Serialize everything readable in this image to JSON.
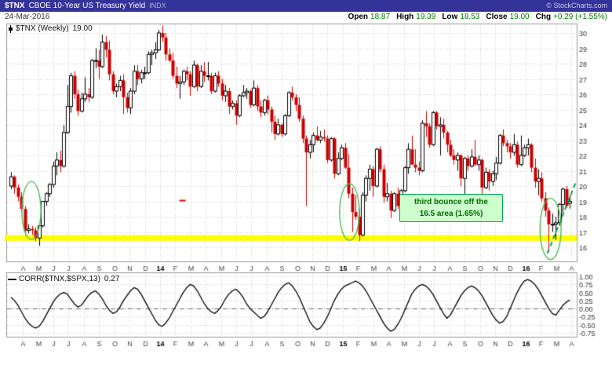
{
  "header": {
    "symbol": "$TNX",
    "name": "CBOE 10-Year US Treasury Yield",
    "exchange": "INDX",
    "copyright": "© StockCharts.com"
  },
  "info": {
    "date": "24-Mar-2016",
    "open_label": "Open",
    "open": "18.87",
    "high_label": "High",
    "high": "19.39",
    "low_label": "Low",
    "low": "18.53",
    "close_label": "Close",
    "close": "19.00",
    "chg_label": "Chg",
    "chg": "+0.29 (+1.55%)"
  },
  "colors": {
    "header_bg": "#333399",
    "candle_up": "#000000",
    "candle_down": "#CC0000",
    "support_band": "#FFFF00",
    "annotation_green": "#00A550",
    "value_green": "#007A00"
  },
  "chart_data": [
    {
      "type": "candlestick",
      "title": "$TNX (Weekly)",
      "value_label": "19.00",
      "timeframe": "Weekly",
      "y_ticks": [
        30,
        29,
        28,
        27,
        26,
        25,
        24,
        23,
        22,
        21,
        20,
        19,
        18,
        17,
        16
      ],
      "ylim": [
        15.1,
        30.7
      ],
      "grid": true,
      "x_axis": {
        "labels": [
          "A",
          "M",
          "J",
          "J",
          "A",
          "S",
          "O",
          "N",
          "D",
          "14",
          "F",
          "M",
          "A",
          "M",
          "J",
          "J",
          "A",
          "S",
          "O",
          "N",
          "D",
          "15",
          "F",
          "M",
          "A",
          "M",
          "J",
          "J",
          "A",
          "S",
          "O",
          "N",
          "D",
          "16",
          "F",
          "M",
          "A"
        ],
        "first_label_week": 3.4,
        "weeks_per_month": 4.3333
      },
      "colors": {
        "up": "#000000",
        "down": "#CC0000"
      },
      "candles": [
        [
          20.0,
          20.9,
          19.8,
          20.6
        ],
        [
          20.6,
          20.7,
          19.5,
          19.9
        ],
        [
          19.9,
          20.1,
          19.0,
          19.3
        ],
        [
          19.3,
          19.6,
          18.3,
          18.5
        ],
        [
          18.5,
          18.7,
          16.8,
          17.1
        ],
        [
          17.1,
          17.5,
          16.9,
          17.2
        ],
        [
          17.2,
          17.4,
          16.8,
          17.1
        ],
        [
          17.1,
          17.3,
          16.4,
          16.6
        ],
        [
          16.6,
          17.5,
          16.1,
          17.4
        ],
        [
          17.4,
          19.0,
          17.3,
          19.0
        ],
        [
          19.0,
          19.6,
          18.7,
          19.5
        ],
        [
          19.5,
          20.2,
          19.3,
          20.1
        ],
        [
          20.1,
          21.6,
          19.9,
          21.3
        ],
        [
          21.3,
          22.2,
          20.7,
          21.7
        ],
        [
          21.7,
          22.3,
          20.9,
          21.3
        ],
        [
          21.3,
          24.0,
          21.2,
          23.5
        ],
        [
          23.5,
          26.6,
          23.4,
          25.2
        ],
        [
          25.2,
          27.4,
          24.8,
          27.2
        ],
        [
          27.2,
          27.5,
          25.7,
          26.0
        ],
        [
          26.0,
          26.3,
          24.6,
          24.9
        ],
        [
          24.9,
          26.1,
          24.8,
          25.7
        ],
        [
          25.7,
          27.1,
          25.5,
          26.0
        ],
        [
          26.0,
          26.4,
          25.5,
          25.8
        ],
        [
          25.8,
          28.3,
          25.7,
          28.2
        ],
        [
          28.2,
          29.0,
          27.7,
          28.2
        ],
        [
          28.2,
          28.9,
          27.0,
          27.8
        ],
        [
          27.8,
          29.9,
          27.7,
          29.4
        ],
        [
          29.4,
          29.8,
          28.4,
          28.9
        ],
        [
          28.9,
          29.5,
          26.9,
          27.3
        ],
        [
          27.3,
          27.5,
          26.0,
          26.2
        ],
        [
          26.2,
          26.7,
          25.8,
          26.5
        ],
        [
          26.5,
          27.2,
          26.2,
          26.9
        ],
        [
          26.9,
          27.3,
          24.7,
          25.8
        ],
        [
          25.8,
          26.1,
          24.8,
          25.1
        ],
        [
          25.1,
          26.4,
          24.7,
          26.2
        ],
        [
          26.2,
          27.9,
          26.0,
          27.5
        ],
        [
          27.5,
          27.9,
          26.6,
          27.0
        ],
        [
          27.0,
          27.6,
          26.7,
          27.4
        ],
        [
          27.4,
          27.8,
          27.0,
          27.4
        ],
        [
          27.4,
          28.8,
          27.3,
          28.6
        ],
        [
          28.6,
          28.9,
          27.9,
          28.7
        ],
        [
          28.7,
          29.4,
          28.3,
          28.9
        ],
        [
          28.9,
          30.2,
          28.8,
          30.0
        ],
        [
          30.0,
          30.5,
          29.4,
          29.7
        ],
        [
          29.7,
          30.0,
          28.2,
          28.6
        ],
        [
          28.6,
          29.0,
          28.1,
          28.2
        ],
        [
          28.2,
          28.7,
          27.0,
          27.2
        ],
        [
          27.2,
          27.8,
          26.4,
          26.7
        ],
        [
          26.7,
          27.2,
          25.7,
          26.8
        ],
        [
          26.8,
          27.6,
          26.6,
          27.5
        ],
        [
          27.5,
          27.8,
          26.9,
          27.3
        ],
        [
          27.3,
          27.5,
          25.9,
          26.5
        ],
        [
          26.5,
          28.2,
          26.4,
          27.9
        ],
        [
          27.9,
          28.0,
          26.2,
          26.5
        ],
        [
          26.5,
          27.9,
          26.4,
          27.5
        ],
        [
          27.5,
          28.1,
          26.8,
          27.2
        ],
        [
          27.2,
          28.1,
          26.9,
          27.2
        ],
        [
          27.2,
          27.4,
          26.0,
          26.2
        ],
        [
          26.2,
          27.4,
          26.1,
          27.2
        ],
        [
          27.2,
          27.5,
          26.5,
          26.7
        ],
        [
          26.7,
          27.0,
          25.6,
          25.9
        ],
        [
          25.9,
          26.6,
          25.5,
          26.2
        ],
        [
          26.2,
          26.4,
          24.7,
          25.2
        ],
        [
          25.2,
          25.6,
          25.0,
          25.4
        ],
        [
          25.4,
          25.6,
          24.0,
          24.6
        ],
        [
          24.6,
          26.0,
          24.5,
          25.9
        ],
        [
          25.9,
          26.6,
          25.8,
          26.1
        ],
        [
          26.1,
          26.4,
          25.7,
          26.2
        ],
        [
          26.2,
          26.3,
          25.1,
          25.3
        ],
        [
          25.3,
          26.9,
          25.2,
          26.4
        ],
        [
          26.4,
          26.6,
          24.9,
          25.2
        ],
        [
          25.2,
          25.6,
          24.5,
          24.8
        ],
        [
          24.8,
          25.7,
          24.6,
          25.6
        ],
        [
          25.6,
          25.9,
          24.7,
          25.0
        ],
        [
          25.0,
          25.2,
          23.5,
          24.2
        ],
        [
          24.2,
          24.6,
          23.0,
          23.4
        ],
        [
          23.4,
          24.4,
          23.3,
          24.0
        ],
        [
          24.0,
          24.1,
          23.2,
          23.4
        ],
        [
          23.4,
          24.7,
          23.3,
          24.6
        ],
        [
          24.6,
          26.2,
          24.5,
          26.1
        ],
        [
          26.1,
          26.5,
          25.6,
          25.8
        ],
        [
          25.8,
          26.0,
          24.9,
          25.3
        ],
        [
          25.3,
          25.8,
          24.2,
          24.4
        ],
        [
          24.4,
          24.6,
          22.8,
          23.1
        ],
        [
          23.1,
          23.3,
          18.7,
          22.2
        ],
        [
          22.2,
          23.0,
          21.8,
          22.7
        ],
        [
          22.7,
          23.5,
          22.2,
          23.3
        ],
        [
          23.3,
          23.9,
          22.9,
          23.0
        ],
        [
          23.0,
          23.6,
          22.8,
          23.2
        ],
        [
          23.2,
          23.7,
          22.9,
          23.1
        ],
        [
          23.1,
          23.3,
          21.5,
          21.7
        ],
        [
          21.7,
          23.2,
          21.6,
          23.1
        ],
        [
          23.1,
          23.2,
          20.5,
          20.8
        ],
        [
          20.8,
          22.2,
          20.7,
          21.8
        ],
        [
          21.8,
          22.7,
          21.7,
          22.5
        ],
        [
          22.5,
          22.8,
          21.1,
          21.2
        ],
        [
          21.2,
          22.1,
          19.2,
          19.5
        ],
        [
          19.5,
          19.9,
          17.0,
          18.3
        ],
        [
          18.3,
          19.4,
          17.8,
          18.0
        ],
        [
          18.0,
          18.5,
          16.4,
          16.8
        ],
        [
          16.8,
          19.6,
          16.7,
          19.4
        ],
        [
          19.4,
          20.7,
          19.0,
          20.5
        ],
        [
          20.5,
          21.4,
          19.7,
          21.1
        ],
        [
          21.1,
          21.3,
          19.3,
          20.0
        ],
        [
          20.0,
          22.5,
          19.9,
          22.4
        ],
        [
          22.4,
          22.6,
          20.9,
          21.1
        ],
        [
          21.1,
          21.4,
          18.9,
          19.3
        ],
        [
          19.3,
          20.2,
          19.0,
          19.5
        ],
        [
          19.5,
          19.7,
          17.9,
          18.4
        ],
        [
          18.4,
          19.6,
          18.3,
          19.5
        ],
        [
          19.5,
          19.9,
          18.5,
          18.7
        ],
        [
          18.7,
          19.8,
          18.6,
          19.7
        ],
        [
          19.7,
          21.3,
          19.6,
          21.2
        ],
        [
          21.2,
          22.8,
          20.8,
          22.4
        ],
        [
          22.4,
          23.3,
          21.4,
          21.4
        ],
        [
          21.4,
          22.4,
          20.9,
          21.2
        ],
        [
          21.2,
          21.6,
          20.7,
          21.0
        ],
        [
          21.0,
          24.3,
          20.9,
          24.1
        ],
        [
          24.1,
          24.9,
          23.2,
          23.9
        ],
        [
          23.9,
          24.1,
          22.5,
          22.7
        ],
        [
          22.7,
          24.9,
          22.6,
          24.8
        ],
        [
          24.8,
          24.9,
          23.7,
          23.9
        ],
        [
          23.9,
          24.5,
          22.0,
          24.0
        ],
        [
          24.0,
          24.4,
          23.1,
          23.5
        ],
        [
          23.5,
          23.6,
          22.2,
          22.7
        ],
        [
          22.7,
          23.0,
          21.9,
          22.0
        ],
        [
          22.0,
          22.4,
          21.4,
          21.7
        ],
        [
          21.7,
          22.2,
          21.0,
          22.0
        ],
        [
          22.0,
          22.1,
          20.0,
          20.5
        ],
        [
          20.5,
          21.9,
          19.0,
          21.8
        ],
        [
          21.8,
          22.0,
          21.0,
          21.3
        ],
        [
          21.3,
          22.4,
          21.2,
          21.9
        ],
        [
          21.9,
          23.0,
          21.3,
          21.4
        ],
        [
          21.4,
          22.0,
          21.0,
          21.7
        ],
        [
          21.7,
          21.8,
          18.9,
          19.9
        ],
        [
          19.9,
          21.2,
          19.8,
          20.9
        ],
        [
          20.9,
          21.1,
          19.7,
          20.3
        ],
        [
          20.3,
          21.0,
          20.0,
          20.8
        ],
        [
          20.8,
          21.9,
          20.4,
          21.5
        ],
        [
          21.5,
          23.4,
          21.4,
          23.3
        ],
        [
          23.3,
          23.7,
          22.6,
          22.8
        ],
        [
          22.8,
          23.0,
          22.2,
          22.6
        ],
        [
          22.6,
          22.8,
          21.8,
          22.2
        ],
        [
          22.2,
          23.4,
          22.0,
          22.7
        ],
        [
          22.7,
          22.9,
          21.2,
          21.4
        ],
        [
          21.4,
          23.3,
          21.3,
          22.0
        ],
        [
          22.0,
          22.7,
          21.9,
          22.5
        ],
        [
          22.5,
          23.1,
          22.0,
          22.7
        ],
        [
          22.7,
          22.8,
          20.9,
          21.2
        ],
        [
          21.2,
          21.8,
          19.9,
          20.3
        ],
        [
          20.3,
          21.1,
          19.4,
          20.5
        ],
        [
          20.5,
          20.9,
          19.0,
          19.2
        ],
        [
          19.2,
          19.6,
          18.0,
          18.4
        ],
        [
          18.4,
          18.6,
          15.7,
          17.5
        ],
        [
          17.5,
          18.2,
          17.0,
          17.5
        ],
        [
          17.5,
          18.0,
          16.5,
          17.6
        ],
        [
          17.6,
          18.9,
          17.4,
          18.8
        ],
        [
          18.8,
          19.9,
          18.2,
          19.8
        ],
        [
          19.8,
          20.0,
          18.6,
          18.7
        ],
        [
          18.87,
          19.39,
          18.53,
          19.0
        ]
      ],
      "annotations": {
        "support_band": {
          "color": "#FFFF00",
          "value_top": 16.8,
          "value_bottom": 16.42
        },
        "ellipse_color": "#55BB55",
        "ellipses": [
          {
            "week": 5.8,
            "value": 18.4,
            "rx_weeks": 2.7,
            "ry_value": 1.9
          },
          {
            "week": 96.3,
            "value": 18.3,
            "rx_weeks": 2.8,
            "ry_value": 1.85
          },
          {
            "week": 153.5,
            "value": 17.2,
            "rx_weeks": 3.0,
            "ry_value": 2.0
          }
        ],
        "trendline": {
          "from": {
            "week": 152.6,
            "value": 15.6
          },
          "to": {
            "week": 160.6,
            "value": 20.2
          },
          "color": "#00A550",
          "dashed": true
        },
        "red_dash": {
          "week": 48.8,
          "value": 19.05,
          "color": "#DD0000"
        },
        "callout": {
          "line1": "third bounce off the",
          "line2": "16.5 area (1.65%)",
          "bg": "#CCFFCC",
          "border": "#00A550",
          "text_color": "#006B00"
        }
      }
    },
    {
      "type": "line",
      "title": "CORR($TNX,$SPX,13)",
      "value_label": "0.27",
      "y_ticks": [
        "1.00",
        "0.75",
        "0.50",
        "0.25",
        "0.00",
        "-0.25",
        "-0.50",
        "-0.75"
      ],
      "ylim": [
        -0.9,
        1.05
      ],
      "zero_line": "dash-dot",
      "grid": true,
      "values": [
        0.35,
        0.25,
        0.1,
        -0.1,
        -0.3,
        -0.45,
        -0.55,
        -0.6,
        -0.55,
        -0.4,
        -0.2,
        0.0,
        0.2,
        0.35,
        0.45,
        0.5,
        0.45,
        0.3,
        0.15,
        0.05,
        0.1,
        0.25,
        0.4,
        0.5,
        0.55,
        0.45,
        0.3,
        0.1,
        -0.05,
        -0.15,
        -0.1,
        0.05,
        0.25,
        0.4,
        0.55,
        0.65,
        0.6,
        0.45,
        0.25,
        0.05,
        -0.15,
        -0.35,
        -0.5,
        -0.55,
        -0.45,
        -0.3,
        -0.1,
        0.1,
        0.3,
        0.5,
        0.65,
        0.75,
        0.7,
        0.55,
        0.35,
        0.15,
        0.0,
        -0.1,
        -0.15,
        -0.05,
        0.1,
        0.3,
        0.45,
        0.55,
        0.6,
        0.5,
        0.35,
        0.15,
        0.0,
        -0.1,
        -0.2,
        -0.3,
        -0.25,
        -0.1,
        0.1,
        0.3,
        0.5,
        0.65,
        0.75,
        0.8,
        0.7,
        0.55,
        0.35,
        0.1,
        -0.15,
        -0.4,
        -0.55,
        -0.65,
        -0.6,
        -0.45,
        -0.25,
        0.0,
        0.25,
        0.45,
        0.6,
        0.7,
        0.75,
        0.8,
        0.85,
        0.8,
        0.7,
        0.55,
        0.35,
        0.15,
        -0.05,
        -0.25,
        -0.45,
        -0.6,
        -0.7,
        -0.65,
        -0.5,
        -0.3,
        -0.05,
        0.2,
        0.45,
        0.6,
        0.7,
        0.75,
        0.7,
        0.6,
        0.45,
        0.25,
        0.05,
        -0.15,
        -0.3,
        -0.2,
        0.0,
        0.2,
        0.4,
        0.55,
        0.65,
        0.7,
        0.65,
        0.55,
        0.4,
        0.2,
        0.0,
        -0.2,
        -0.35,
        -0.45,
        -0.4,
        -0.25,
        0.0,
        0.25,
        0.5,
        0.7,
        0.85,
        0.9,
        0.85,
        0.75,
        0.6,
        0.4,
        0.2,
        0.0,
        -0.15,
        -0.2,
        -0.05,
        0.1,
        0.2,
        0.27
      ]
    }
  ]
}
